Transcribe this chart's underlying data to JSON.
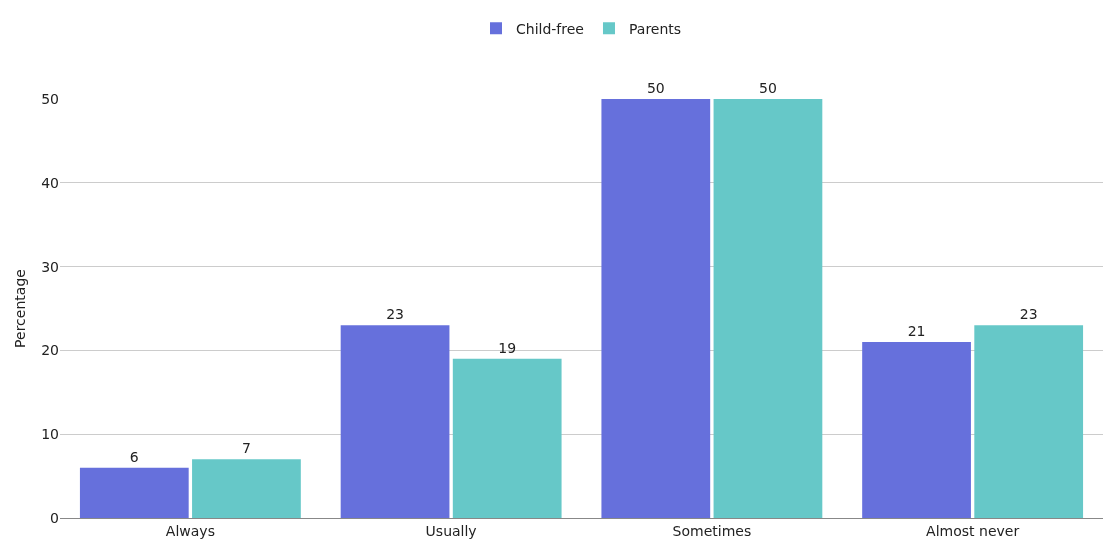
{
  "chart_data": {
    "type": "bar",
    "ylabel": "Percentage",
    "categories": [
      "Always",
      "Usually",
      "Sometimes",
      "Almost never"
    ],
    "series": [
      {
        "name": "Child-free",
        "color": "#6670dc",
        "values": [
          6,
          23,
          50,
          21
        ]
      },
      {
        "name": "Parents",
        "color": "#66c8c8",
        "values": [
          7,
          19,
          50,
          23
        ]
      }
    ],
    "ylim": [
      0,
      50
    ],
    "yticks": [
      0,
      10,
      20,
      30,
      40,
      50
    ],
    "grid": "y",
    "legend": "top",
    "data_labels": true
  }
}
